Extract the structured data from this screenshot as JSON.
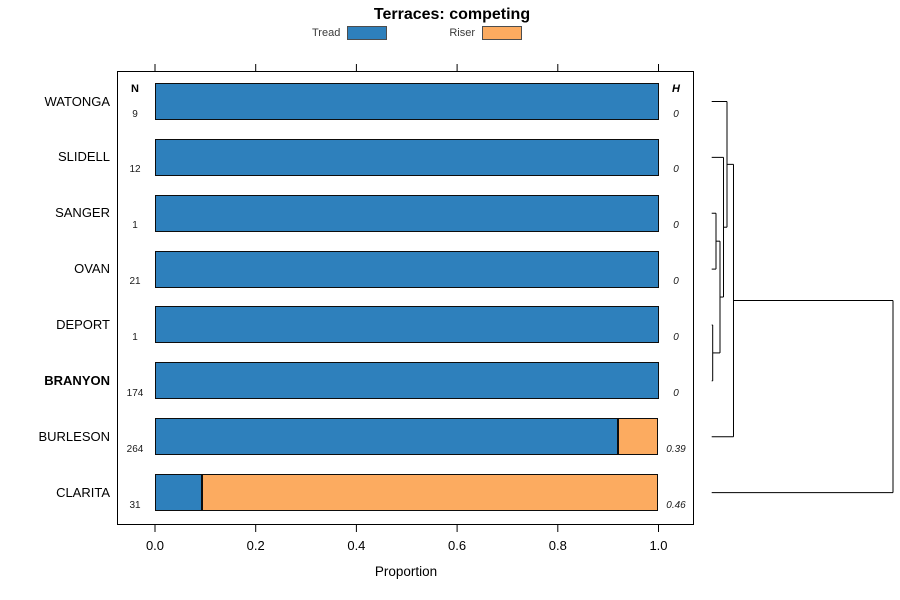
{
  "title": "Terraces: competing",
  "x_axis": {
    "label": "Proportion",
    "tick_labels": [
      "0.0",
      "0.2",
      "0.4",
      "0.6",
      "0.8",
      "1.0"
    ],
    "tick_values": [
      0,
      0.2,
      0.4,
      0.6,
      0.8,
      1.0
    ],
    "range": [
      0,
      1
    ]
  },
  "columns": {
    "n_header": "N",
    "h_header": "H"
  },
  "colors": {
    "tread": "#2e80bc",
    "riser": "#fcab60",
    "bar_border": "#0d0d0d",
    "line": "#000000"
  },
  "chart_data": {
    "type": "bar",
    "orientation": "horizontal",
    "stacked": true,
    "title": "Terraces: competing",
    "xlabel": "Proportion",
    "xlim": [
      0,
      1
    ],
    "xticks": [
      0,
      0.2,
      0.4,
      0.6,
      0.8,
      1.0
    ],
    "grid": false,
    "legend_position": "top",
    "categories": [
      "WATONGA",
      "SLIDELL",
      "SANGER",
      "OVAN",
      "DEPORT",
      "BRANYON",
      "BURLESON",
      "CLARITA"
    ],
    "bold_category": "BRANYON",
    "series": [
      {
        "name": "Tread",
        "color": "#2e80bc",
        "values": [
          1.0,
          1.0,
          1.0,
          1.0,
          1.0,
          1.0,
          0.92,
          0.093
        ]
      },
      {
        "name": "Riser",
        "color": "#fcab60",
        "values": [
          0.0,
          0.0,
          0.0,
          0.0,
          0.0,
          0.0,
          0.08,
          0.907
        ]
      }
    ],
    "n_values": [
      "9",
      "12",
      "1",
      "21",
      "1",
      "174",
      "264",
      "31"
    ],
    "h_values": [
      "0",
      "0",
      "0",
      "0",
      "0",
      "0",
      "0.39",
      "0.46"
    ],
    "dendrogram": {
      "side": "right",
      "leaves": [
        "WATONGA",
        "SLIDELL",
        "SANGER",
        "OVAN",
        "DEPORT",
        "BRANYON",
        "BURLESON",
        "CLARITA"
      ],
      "merges": [
        {
          "a": "DEPORT",
          "b": "BRANYON",
          "height": 0.0055
        },
        {
          "a": "SANGER",
          "b": "OVAN",
          "height": 0.0237
        },
        {
          "a": "#1",
          "b": "#0",
          "height": 0.0458
        },
        {
          "a": "SLIDELL",
          "b": "#2",
          "height": 0.0651
        },
        {
          "a": "WATONGA",
          "b": "#3",
          "height": 0.0844
        },
        {
          "a": "#4",
          "b": "BURLESON",
          "height": 0.1202
        },
        {
          "a": "#5",
          "b": "CLARITA",
          "height": 1.0
        }
      ]
    }
  }
}
